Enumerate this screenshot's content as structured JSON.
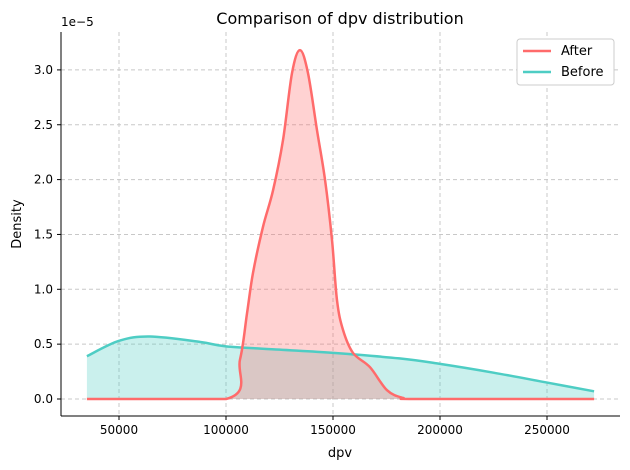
{
  "chart_data": {
    "type": "area",
    "title": "Comparison of dpv distribution",
    "xlabel": "dpv",
    "ylabel": "Density",
    "y_offset_label": "1e−5",
    "xlim": [
      23000,
      282000
    ],
    "ylim": [
      -0.16,
      3.33
    ],
    "xticks": [
      50000,
      100000,
      150000,
      200000,
      250000
    ],
    "xtick_labels": [
      "50000",
      "100000",
      "150000",
      "200000",
      "250000"
    ],
    "yticks": [
      0,
      0.5,
      1.0,
      1.5,
      2.0,
      2.5,
      3.0
    ],
    "ytick_labels": [
      "0.0",
      "0.5",
      "1.0",
      "1.5",
      "2.0",
      "2.5",
      "3.0"
    ],
    "grid": true,
    "legend": "top-right",
    "series": [
      {
        "name": "After",
        "color": "#ff6b6b",
        "x": [
          35000,
          100000,
          106540,
          109815,
          112620,
          117290,
          121960,
          126640,
          130840,
          134580,
          138320,
          142520,
          146260,
          149530,
          151870,
          154670,
          159350,
          167290,
          175230,
          182710,
          190000,
          272000
        ],
        "y": [
          0,
          0.0,
          0.36,
          0.78,
          1.15,
          1.57,
          1.9,
          2.36,
          2.97,
          3.18,
          2.97,
          2.45,
          2.0,
          1.45,
          0.9,
          0.63,
          0.42,
          0.29,
          0.08,
          0.01,
          0,
          0
        ]
      },
      {
        "name": "Before",
        "color": "#4ecdc4",
        "x": [
          35000,
          50000,
          64500,
          88000,
          100000,
          125000,
          150000,
          181000,
          200000,
          225000,
          250000,
          272000
        ],
        "y": [
          0.39,
          0.53,
          0.57,
          0.52,
          0.48,
          0.45,
          0.42,
          0.37,
          0.32,
          0.24,
          0.15,
          0.07
        ]
      }
    ]
  }
}
